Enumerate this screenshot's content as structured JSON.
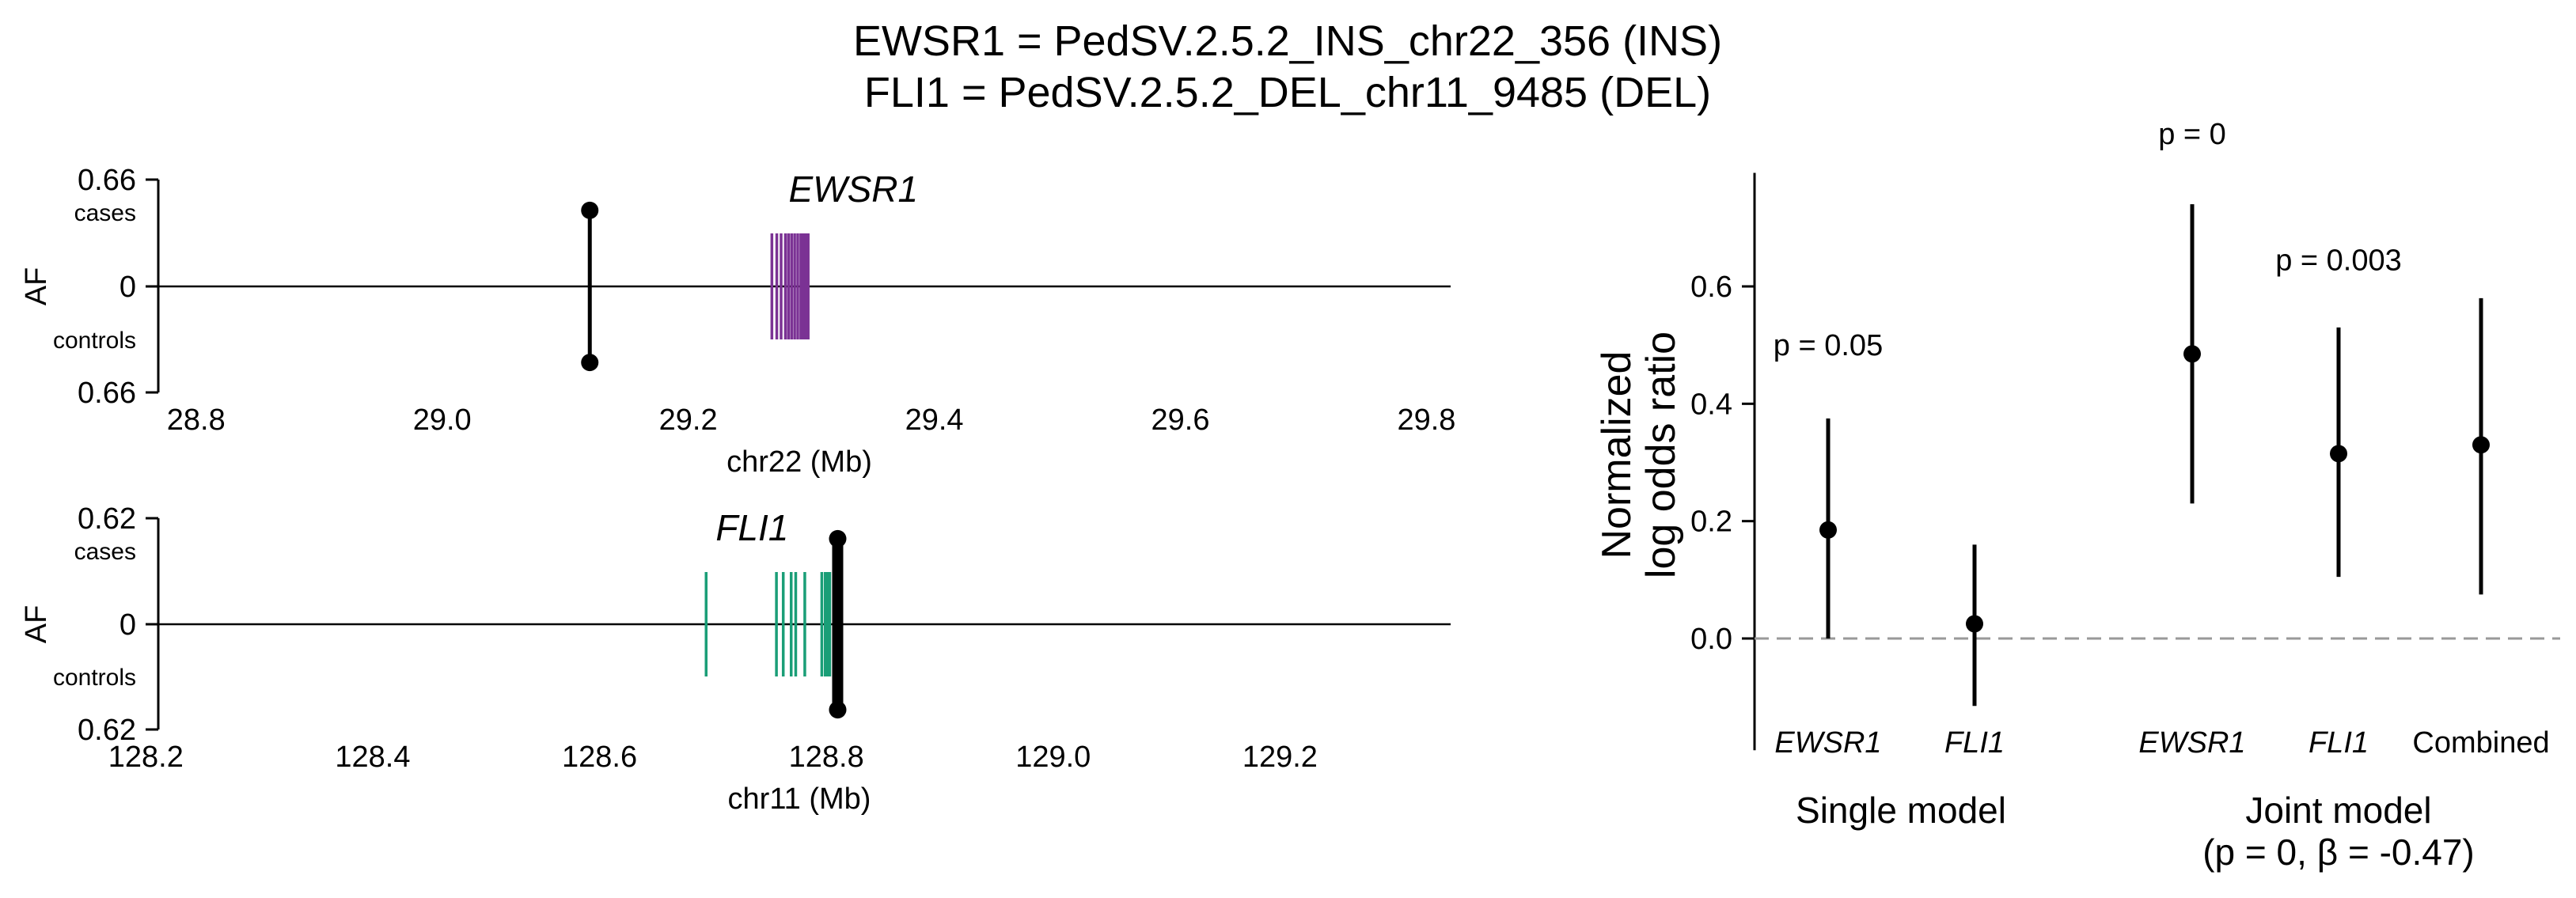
{
  "title_lines": [
    "EWSR1 = PedSV.2.5.2_INS_chr22_356 (INS)",
    "FLI1 = PedSV.2.5.2_DEL_chr11_9485 (DEL)"
  ],
  "chart_data": [
    {
      "type": "scatter",
      "panel": "EWSR1 locus",
      "gene_label": "EWSR1",
      "ylabel": "AF",
      "y_top_tick": "0.66",
      "y_bottom_tick": "0.66",
      "y_zero_tick": "0",
      "cases_label": "cases",
      "controls_label": "controls",
      "xlabel": "chr22 (Mb)",
      "xlim": [
        28.75,
        29.81
      ],
      "xticks": [
        "28.8",
        "29.0",
        "29.2",
        "29.4",
        "29.6",
        "29.8"
      ],
      "gene_color": "#7b3294",
      "gene_exons_mb": [
        29.268,
        29.272,
        29.2755,
        29.279,
        29.2815,
        29.284,
        29.2865,
        29.289,
        29.2915,
        29.2935,
        29.2955,
        29.2975
      ],
      "sv_marker": {
        "x": 29.12,
        "cases_af": 0.47,
        "controls_af": 0.47
      }
    },
    {
      "type": "scatter",
      "panel": "FLI1 locus",
      "gene_label": "FLI1",
      "ylabel": "AF",
      "y_top_tick": "0.62",
      "y_bottom_tick": "0.62",
      "y_zero_tick": "0",
      "cases_label": "cases",
      "controls_label": "controls",
      "xlabel": "chr11 (Mb)",
      "xlim": [
        128.19,
        129.34
      ],
      "xticks": [
        "128.2",
        "128.4",
        "128.6",
        "128.8",
        "129.0",
        "129.2"
      ],
      "gene_color": "#1a9e77",
      "gene_exons_mb": [
        128.694,
        128.756,
        128.762,
        128.769,
        128.773,
        128.781,
        128.796,
        128.799,
        128.801,
        128.803
      ],
      "sv_marker": {
        "x": 128.81,
        "cases_af": 0.5,
        "controls_af": 0.5
      }
    },
    {
      "type": "scatter",
      "panel": "effect estimates",
      "ylabel_lines": [
        "Normalized",
        "log odds ratio"
      ],
      "ylim": [
        -0.15,
        0.78
      ],
      "yticks": [
        "0.0",
        "0.2",
        "0.4",
        "0.6"
      ],
      "reference_line": 0.0,
      "groups": [
        {
          "label": "Single model",
          "sublabel": ""
        },
        {
          "label": "Joint model",
          "sublabel": "(p = 0, β = -0.47)"
        }
      ],
      "points": [
        {
          "category": "EWSR1",
          "italic": true,
          "estimate": 0.185,
          "ci": [
            0.0,
            0.375
          ],
          "group": 0
        },
        {
          "category": "FLI1",
          "italic": true,
          "estimate": 0.025,
          "ci": [
            -0.115,
            0.16
          ],
          "group": 0
        },
        {
          "category": "EWSR1",
          "italic": true,
          "estimate": 0.485,
          "ci": [
            0.23,
            0.74
          ],
          "group": 1
        },
        {
          "category": "FLI1",
          "italic": true,
          "estimate": 0.315,
          "ci": [
            0.105,
            0.53
          ],
          "group": 1
        },
        {
          "category": "Combined",
          "italic": false,
          "estimate": 0.33,
          "ci": [
            0.075,
            0.58
          ],
          "group": 1
        }
      ],
      "pvalues": [
        {
          "text": "p = 0.05",
          "y": 0.5,
          "near": 0
        },
        {
          "text": "p = 0",
          "y": 0.86,
          "near": 2
        },
        {
          "text": "p = 0.003",
          "y": 0.645,
          "near": 3
        }
      ]
    }
  ]
}
